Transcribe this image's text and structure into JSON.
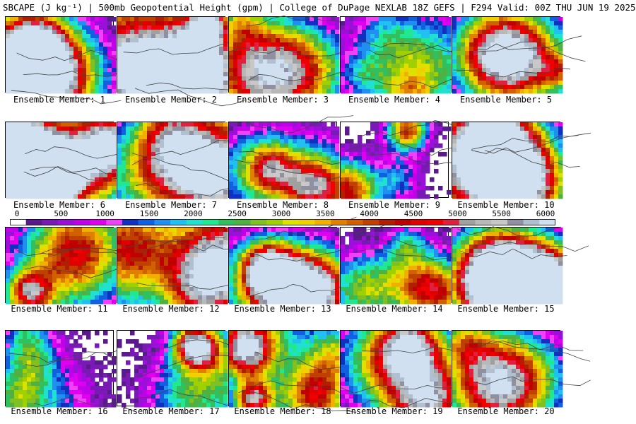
{
  "header": {
    "title": "SBCAPE (J kg⁻¹) | 500mb Geopotential Height (gpm) | College of DuPage NEXLAB 18Z GEFS | F294 Valid: 00Z THU JUN 19 2025"
  },
  "colorbar": {
    "ticks": [
      "0",
      "500",
      "1000",
      "1500",
      "2000",
      "2500",
      "3000",
      "3500",
      "4000",
      "4500",
      "5000",
      "5500",
      "6000"
    ],
    "colors": [
      "#ffffff",
      "#5a1a8c",
      "#7a1ab4",
      "#9a10d8",
      "#c000e8",
      "#e000f0",
      "#f040f8",
      "#1030c0",
      "#1060e0",
      "#2090f0",
      "#20c0f0",
      "#20e0d0",
      "#20e890",
      "#30c060",
      "#50b040",
      "#80c020",
      "#a0d000",
      "#e0e000",
      "#f0d000",
      "#f0b000",
      "#e08000",
      "#d06000",
      "#c04000",
      "#b02000",
      "#c00000",
      "#e00000",
      "#f00000",
      "#e02040",
      "#a0a0a0",
      "#b8b8b8",
      "#c8c8c8",
      "#9090a0",
      "#b0c0d0",
      "#d0e0f0"
    ]
  },
  "panels": [
    {
      "label": "Ensemble Member: 1",
      "intensity": 0.55
    },
    {
      "label": "Ensemble Member: 2",
      "intensity": 0.75
    },
    {
      "label": "Ensemble Member: 3",
      "intensity": 0.35
    },
    {
      "label": "Ensemble Member: 4",
      "intensity": 0.3
    },
    {
      "label": "Ensemble Member: 5",
      "intensity": 0.45
    },
    {
      "label": "Ensemble Member: 6",
      "intensity": 0.85
    },
    {
      "label": "Ensemble Member: 7",
      "intensity": 0.55
    },
    {
      "label": "Ensemble Member: 8",
      "intensity": 0.4
    },
    {
      "label": "Ensemble Member: 9",
      "intensity": 0.6
    },
    {
      "label": "Ensemble Member: 10",
      "intensity": 0.8
    },
    {
      "label": "Ensemble Member: 11",
      "intensity": 0.5
    },
    {
      "label": "Ensemble Member: 12",
      "intensity": 0.8
    },
    {
      "label": "Ensemble Member: 13",
      "intensity": 0.8
    },
    {
      "label": "Ensemble Member: 14",
      "intensity": 0.45
    },
    {
      "label": "Ensemble Member: 15",
      "intensity": 0.9
    },
    {
      "label": "Ensemble Member: 16",
      "intensity": 0.35
    },
    {
      "label": "Ensemble Member: 17",
      "intensity": 0.6
    },
    {
      "label": "Ensemble Member: 18",
      "intensity": 0.7
    },
    {
      "label": "Ensemble Member: 19",
      "intensity": 0.5
    },
    {
      "label": "Ensemble Member: 20",
      "intensity": 0.35
    }
  ]
}
